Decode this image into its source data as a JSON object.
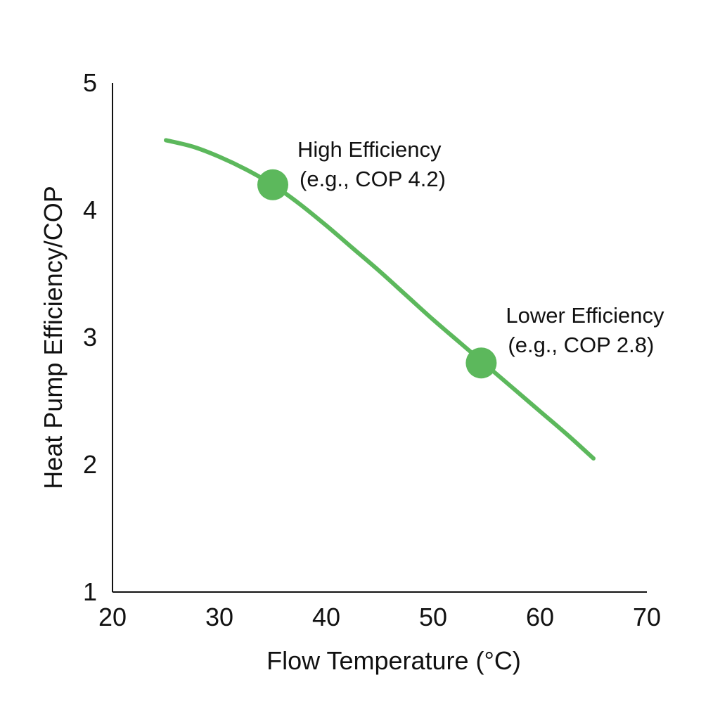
{
  "chart_data": {
    "type": "line",
    "title": "",
    "xlabel": "Flow Temperature (°C)",
    "ylabel": "Heat Pump Efficiency/COP",
    "xlim": [
      20,
      70
    ],
    "ylim": [
      1,
      5
    ],
    "x_ticks": [
      20,
      30,
      40,
      50,
      60,
      70
    ],
    "y_ticks": [
      1,
      2,
      3,
      4,
      5
    ],
    "grid": false,
    "series": [
      {
        "name": "COP",
        "color": "#5cb85c",
        "x": [
          25,
          27.5,
          30,
          32.5,
          35,
          37.5,
          40,
          42.5,
          45,
          47.5,
          50,
          52.5,
          55,
          57.5,
          60,
          62.5,
          65
        ],
        "y": [
          4.55,
          4.5,
          4.42,
          4.32,
          4.2,
          4.05,
          3.88,
          3.7,
          3.52,
          3.33,
          3.14,
          2.96,
          2.78,
          2.6,
          2.42,
          2.24,
          2.05
        ]
      }
    ],
    "annotations": [
      {
        "x": 35,
        "y": 4.2,
        "color": "#5cb85c",
        "line1": "High Efficiency",
        "line2": "(e.g., COP 4.2)"
      },
      {
        "x": 54.5,
        "y": 2.8,
        "color": "#5cb85c",
        "line1": "Lower Efficiency",
        "line2": "(e.g., COP 2.8)"
      }
    ]
  }
}
